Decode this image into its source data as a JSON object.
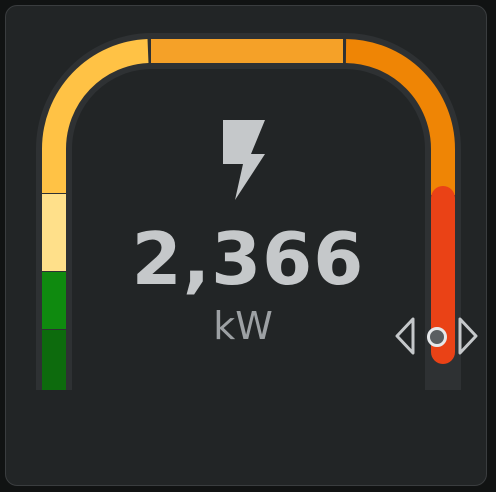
{
  "gauge": {
    "value": "2,366",
    "unit": "kW",
    "icon": "lightning-bolt-icon",
    "colors": {
      "track": "#2e3133",
      "dark_green": "#0d6b0d",
      "green": "#0f8a0f",
      "pale_yellow": "#ffe08a",
      "yellow_orange": "#ffc245",
      "orange": "#f5a128",
      "dark_orange": "#ef8505",
      "red": "#ea4216",
      "icon": "#c5c8ca"
    },
    "segments": [
      "dark_green",
      "green",
      "pale_yellow",
      "yellow_orange",
      "orange",
      "dark_orange",
      "red"
    ]
  },
  "navigation": {
    "prev_icon": "chevron-left-icon",
    "next_icon": "chevron-right-icon",
    "indicator_icon": "page-dot-icon"
  }
}
